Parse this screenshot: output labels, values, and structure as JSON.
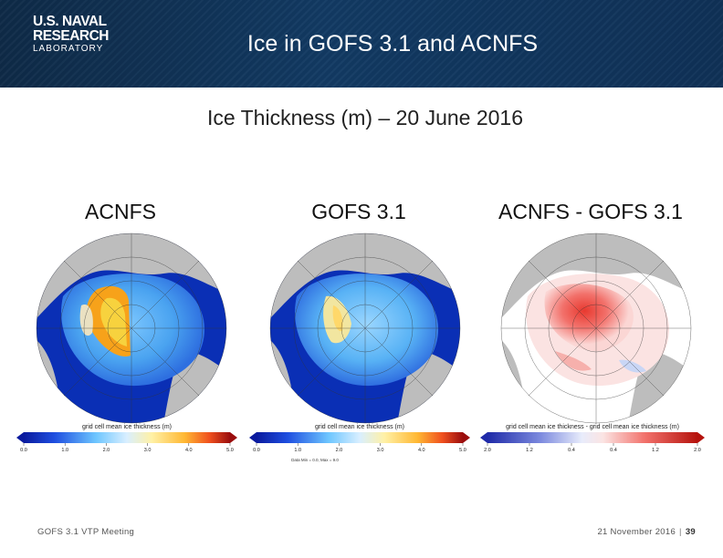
{
  "header": {
    "logo_line1": "U.S. NAVAL",
    "logo_line2": "RESEARCH",
    "logo_line3": "LABORATORY",
    "title": "Ice in GOFS 3.1 and ACNFS"
  },
  "subtitle": "Ice Thickness (m) – 20 June 2016",
  "panels": [
    {
      "label": "ACNFS",
      "colorbar_title": "grid cell mean ice thickness (m)",
      "ticks": [
        "0.0",
        "1.0",
        "2.0",
        "3.0",
        "4.0",
        "5.0"
      ],
      "note": ""
    },
    {
      "label": "GOFS 3.1",
      "colorbar_title": "grid cell mean ice thickness (m)",
      "ticks": [
        "0.0",
        "1.0",
        "2.0",
        "3.0",
        "4.0",
        "5.0"
      ],
      "note": "Data Min = 0.0, Max = 9.0"
    },
    {
      "label": "ACNFS - GOFS 3.1",
      "colorbar_title": "grid cell mean ice thickness - grid cell mean ice thickness (m)",
      "ticks": [
        "2.0",
        "1.2",
        "0.4",
        "0.4",
        "1.2",
        "2.0"
      ],
      "note": ""
    }
  ],
  "footer": {
    "left": "GOFS 3.1 VTP Meeting",
    "date": "21 November 2016",
    "separator": "|",
    "page": "39"
  },
  "colors": {
    "header_bg": "#0f3157",
    "ocean": "#0a2fb5",
    "land": "#b9b9b9",
    "diff_pos": "#e8392f"
  }
}
